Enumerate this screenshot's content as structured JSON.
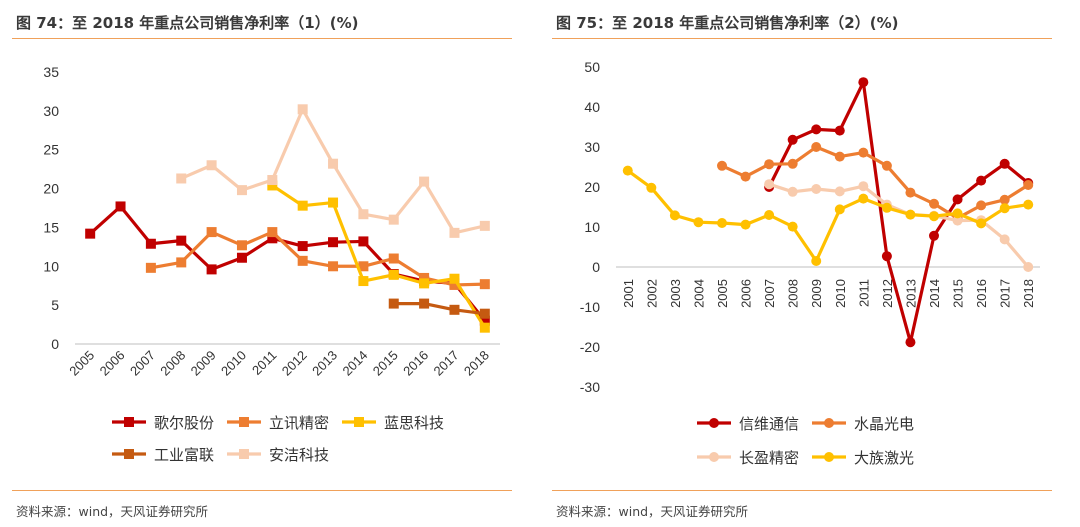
{
  "charts": [
    {
      "title": "图 74：至 2018 年重点公司销售净利率（1）(%)",
      "source": "资料来源：wind，天风证券研究所"
    },
    {
      "title": "图 75：至 2018 年重点公司销售净利率（2）(%)",
      "source": "资料来源：wind，天风证券研究所"
    }
  ],
  "chart_data": [
    {
      "type": "line",
      "title": "图 74：至 2018 年重点公司销售净利率（1）(%)",
      "x": [
        "2005",
        "2006",
        "2007",
        "2008",
        "2009",
        "2010",
        "2011",
        "2012",
        "2013",
        "2014",
        "2015",
        "2016",
        "2017",
        "2018"
      ],
      "ylim": [
        0,
        35
      ],
      "yticks": [
        0,
        5,
        10,
        15,
        20,
        25,
        30,
        35
      ],
      "grid": false,
      "legend": "bottom",
      "series": [
        {
          "name": "歌尔股份",
          "color": "#c00000",
          "values": [
            14.2,
            17.7,
            12.9,
            13.3,
            9.6,
            11.1,
            13.6,
            12.6,
            13.1,
            13.2,
            9.0,
            8.1,
            7.8,
            3.0
          ]
        },
        {
          "name": "立讯精密",
          "color": "#ed7d31",
          "values": [
            null,
            null,
            9.8,
            10.5,
            14.4,
            12.7,
            14.4,
            10.7,
            10.0,
            10.0,
            11.0,
            8.5,
            7.6,
            7.7
          ]
        },
        {
          "name": "蓝思科技",
          "color": "#ffc000",
          "values": [
            null,
            null,
            null,
            null,
            null,
            null,
            20.4,
            17.8,
            18.2,
            8.1,
            8.9,
            7.8,
            8.4,
            2.1
          ]
        },
        {
          "name": "工业富联",
          "color": "#c55a11",
          "values": [
            null,
            null,
            null,
            null,
            null,
            null,
            null,
            null,
            null,
            null,
            5.2,
            5.2,
            4.4,
            3.9
          ]
        },
        {
          "name": "安洁科技",
          "color": "#f8cbad",
          "values": [
            null,
            null,
            null,
            21.3,
            23.0,
            19.8,
            21.1,
            30.2,
            23.2,
            16.7,
            16.0,
            20.9,
            14.3,
            15.2
          ]
        }
      ]
    },
    {
      "type": "line",
      "title": "图 75：至 2018 年重点公司销售净利率（2）(%)",
      "x": [
        "2001",
        "2002",
        "2003",
        "2004",
        "2005",
        "2006",
        "2007",
        "2008",
        "2009",
        "2010",
        "2011",
        "2012",
        "2013",
        "2014",
        "2015",
        "2016",
        "2017",
        "2018"
      ],
      "ylim": [
        -30,
        50
      ],
      "yticks": [
        -30,
        -20,
        -10,
        0,
        10,
        20,
        30,
        40,
        50
      ],
      "grid": false,
      "legend": "bottom",
      "series": [
        {
          "name": "信维通信",
          "color": "#c00000",
          "values": [
            null,
            null,
            null,
            null,
            null,
            null,
            20.0,
            31.8,
            34.4,
            34.1,
            46.2,
            2.7,
            -18.8,
            7.8,
            16.9,
            21.6,
            25.8,
            21.0
          ]
        },
        {
          "name": "水晶光电",
          "color": "#ed7d31",
          "values": [
            null,
            null,
            null,
            null,
            25.3,
            22.6,
            25.7,
            25.8,
            30.0,
            27.6,
            28.6,
            25.3,
            18.6,
            15.8,
            12.2,
            15.4,
            16.8,
            20.5
          ]
        },
        {
          "name": "长盈精密",
          "color": "#f8cbad",
          "values": [
            null,
            null,
            null,
            null,
            null,
            null,
            20.7,
            18.8,
            19.5,
            18.9,
            20.2,
            15.6,
            13.1,
            12.8,
            11.6,
            11.7,
            6.9,
            0.0
          ]
        },
        {
          "name": "大族激光",
          "color": "#ffc000",
          "values": [
            24.1,
            19.8,
            12.9,
            11.2,
            11.0,
            10.6,
            13.0,
            10.1,
            1.5,
            14.4,
            17.1,
            14.8,
            13.1,
            12.7,
            13.4,
            10.9,
            14.7,
            15.6
          ]
        }
      ]
    }
  ]
}
